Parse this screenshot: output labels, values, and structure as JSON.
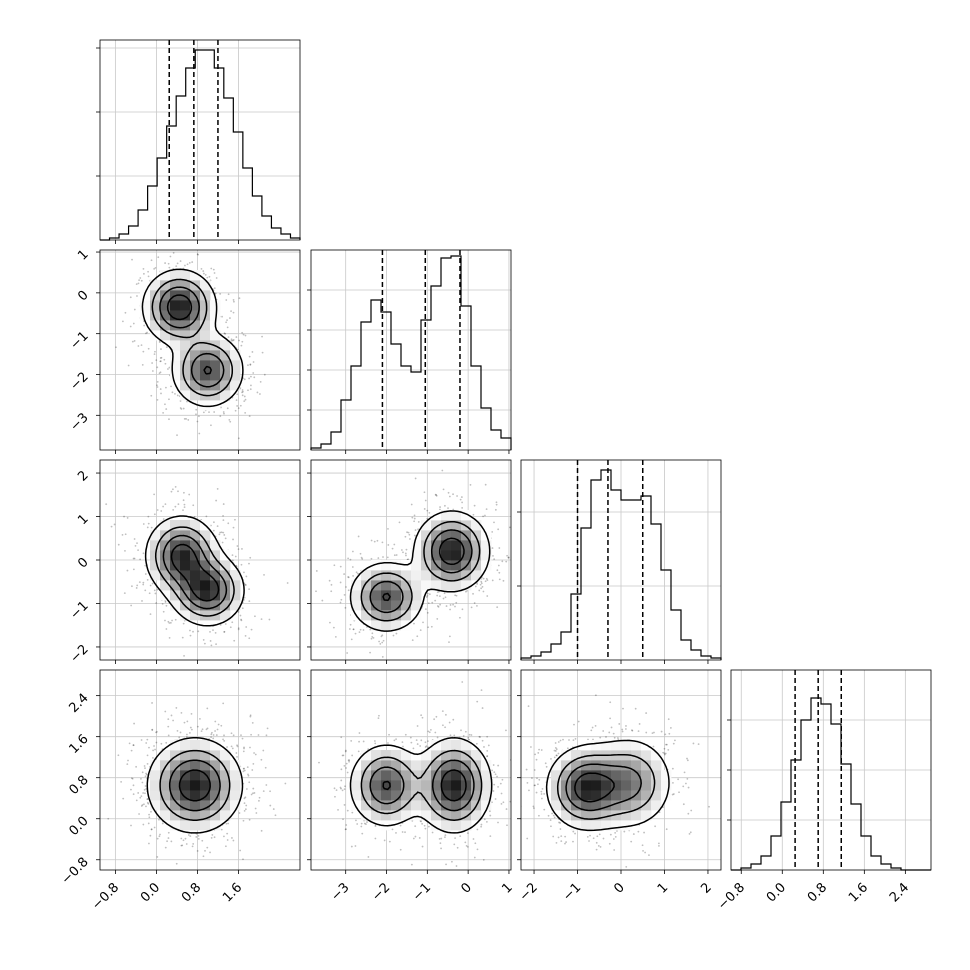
{
  "chart_data": {
    "type": "corner",
    "grid": true,
    "variables": [
      {
        "range": [
          -1.1,
          2.8
        ],
        "ticks": [
          -0.8,
          0.0,
          0.8,
          1.6
        ],
        "tick_labels": [
          "−0.8",
          "0.0",
          "0.8",
          "1.6"
        ],
        "diag_ticks": [
          -0.8,
          0.0,
          0.8,
          1.6
        ],
        "diag_tick_labels": [
          "−0.8",
          "0.0",
          "0.8",
          "1.6"
        ],
        "hist_ymax": 1.0,
        "hist_yticks": [
          0.32,
          0.64,
          0.96
        ],
        "hist_bins": [
          0.0,
          0.01,
          0.03,
          0.07,
          0.15,
          0.27,
          0.41,
          0.57,
          0.72,
          0.86,
          0.95,
          0.95,
          0.86,
          0.71,
          0.54,
          0.36,
          0.22,
          0.12,
          0.06,
          0.03,
          0.01
        ],
        "quantiles": [
          0.25,
          0.73,
          1.2
        ]
      },
      {
        "range": [
          -3.85,
          1.05
        ],
        "ticks": [
          -3,
          -2,
          -1,
          0,
          1
        ],
        "tick_labels": [
          "−3",
          "−2",
          "−1",
          "0",
          "1"
        ],
        "diag_ticks": [
          -3,
          -2,
          -1,
          0,
          1
        ],
        "diag_tick_labels": [
          "−3",
          "−2",
          "−1",
          "0",
          "1"
        ],
        "hist_ymax": 1.0,
        "hist_yticks": [
          0.2,
          0.4,
          0.6,
          0.8
        ],
        "hist_bins": [
          0.01,
          0.03,
          0.09,
          0.25,
          0.42,
          0.64,
          0.75,
          0.69,
          0.53,
          0.42,
          0.39,
          0.65,
          0.82,
          0.96,
          0.97,
          0.72,
          0.42,
          0.21,
          0.1,
          0.06
        ],
        "quantiles": [
          -2.1,
          -1.05,
          -0.2
        ]
      },
      {
        "range": [
          -2.3,
          2.3
        ],
        "ticks": [
          -2,
          -1,
          0,
          1,
          2
        ],
        "tick_labels": [
          "−2",
          "−1",
          "0",
          "1",
          "2"
        ],
        "diag_ticks": [
          -2,
          -1,
          0,
          1,
          2
        ],
        "diag_tick_labels": [
          "−2",
          "−1",
          "0",
          "1",
          "2"
        ],
        "hist_ymax": 1.0,
        "hist_yticks": [
          0.37,
          0.74
        ],
        "hist_bins": [
          0.01,
          0.02,
          0.04,
          0.08,
          0.14,
          0.33,
          0.66,
          0.9,
          0.95,
          0.85,
          0.8,
          0.8,
          0.82,
          0.68,
          0.45,
          0.25,
          0.1,
          0.05,
          0.02,
          0.01
        ],
        "quantiles": [
          -1.0,
          -0.3,
          0.5
        ]
      },
      {
        "range": [
          -1.0,
          2.9
        ],
        "ticks": [
          -0.8,
          0.0,
          0.8,
          1.6,
          2.4
        ],
        "tick_labels": [
          "−0.8",
          "0.0",
          "0.8",
          "1.6",
          "2.4"
        ],
        "diag_ticks": [
          -0.8,
          0.0,
          0.8,
          1.6,
          2.4
        ],
        "diag_tick_labels": [
          "−0.8",
          "0.0",
          "0.8",
          "1.6",
          "2.4"
        ],
        "hist_ymax": 1.0,
        "hist_yticks": [
          0.25,
          0.5,
          0.75
        ],
        "hist_bins": [
          0.0,
          0.01,
          0.03,
          0.07,
          0.17,
          0.34,
          0.55,
          0.75,
          0.86,
          0.83,
          0.73,
          0.53,
          0.33,
          0.17,
          0.07,
          0.03,
          0.01,
          0.0,
          0.0,
          0.0
        ],
        "quantiles": [
          0.25,
          0.7,
          1.15
        ]
      }
    ],
    "panels": [
      {
        "row": 1,
        "col": 0,
        "modes": [
          {
            "mx": 0.45,
            "my": -0.35,
            "sx": 0.35,
            "sy": 0.45,
            "w": 0.55
          },
          {
            "mx": 1.0,
            "my": -1.9,
            "sx": 0.35,
            "sy": 0.45,
            "w": 0.45
          }
        ]
      },
      {
        "row": 2,
        "col": 0,
        "modes": [
          {
            "mx": 0.5,
            "my": 0.1,
            "sx": 0.35,
            "sy": 0.45,
            "w": 0.5
          },
          {
            "mx": 1.0,
            "my": -0.7,
            "sx": 0.35,
            "sy": 0.4,
            "w": 0.5
          }
        ]
      },
      {
        "row": 2,
        "col": 1,
        "modes": [
          {
            "mx": -0.4,
            "my": 0.2,
            "sx": 0.45,
            "sy": 0.45,
            "w": 0.55
          },
          {
            "mx": -2.0,
            "my": -0.85,
            "sx": 0.45,
            "sy": 0.4,
            "w": 0.45
          }
        ]
      },
      {
        "row": 3,
        "col": 0,
        "modes": [
          {
            "mx": 0.75,
            "my": 0.65,
            "sx": 0.45,
            "sy": 0.45,
            "w": 1.0
          }
        ]
      },
      {
        "row": 3,
        "col": 1,
        "modes": [
          {
            "mx": -2.0,
            "my": 0.65,
            "sx": 0.45,
            "sy": 0.4,
            "w": 0.45
          },
          {
            "mx": -0.35,
            "my": 0.65,
            "sx": 0.45,
            "sy": 0.45,
            "w": 0.55
          }
        ]
      },
      {
        "row": 3,
        "col": 2,
        "modes": [
          {
            "mx": -0.8,
            "my": 0.6,
            "sx": 0.45,
            "sy": 0.4,
            "w": 0.6
          },
          {
            "mx": 0.2,
            "my": 0.7,
            "sx": 0.5,
            "sy": 0.45,
            "w": 0.4
          }
        ]
      }
    ]
  }
}
